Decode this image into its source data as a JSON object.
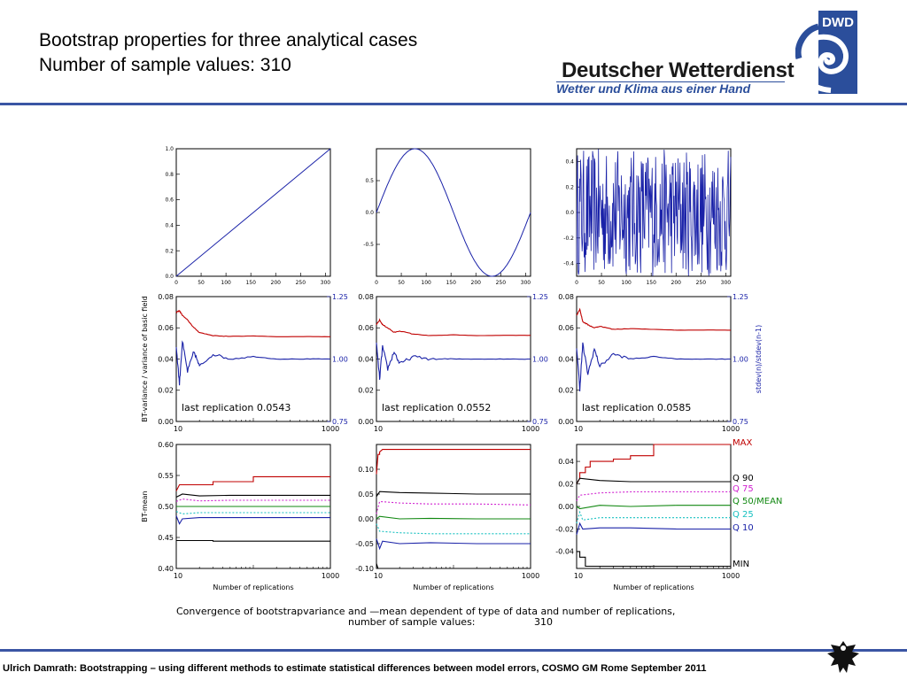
{
  "header": {
    "title_line1": "Bootstrap properties for three analytical cases",
    "title_line2": "Number of sample values: 310"
  },
  "logo": {
    "badge": "DWD",
    "name": "Deutscher Wetterdienst",
    "slogan": "Wetter und Klima aus einer Hand",
    "brand_color": "#2b4e9b"
  },
  "footer": {
    "text": "Ulrich Damrath: Bootstrapping – using different methods to estimate statistical differences between model errors, COSMO GM Rome September  2011"
  },
  "caption": {
    "line1": "Convergence of bootstrapvariance and —mean dependent of type of data and number of replications,",
    "line2": "number of sample values:",
    "value": "310"
  },
  "chart_data": [
    {
      "type": "line",
      "panel": "linear-data",
      "xlim": [
        0,
        310
      ],
      "ylim": [
        0,
        1
      ],
      "xticks": [
        "0",
        "50",
        "100",
        "150",
        "200",
        "250",
        "300"
      ],
      "yticks": [
        "0.0",
        "0.2",
        "0.4",
        "0.6",
        "0.8",
        "1.0"
      ],
      "series": [
        {
          "x": [
            0,
            310
          ],
          "y": [
            0,
            1
          ]
        }
      ]
    },
    {
      "type": "line",
      "panel": "sine-data",
      "xlim": [
        0,
        310
      ],
      "ylim": [
        -1,
        1
      ],
      "xticks": [
        "0",
        "50",
        "100",
        "150",
        "200",
        "250",
        "300"
      ],
      "yticks": [
        "-0.5",
        "0.0",
        "0.5"
      ],
      "series": [
        {
          "function": "sine",
          "x": [
            0,
            78,
            233,
            310
          ],
          "y": [
            0.0,
            1.0,
            -1.0,
            0.0
          ]
        }
      ]
    },
    {
      "type": "line",
      "panel": "random-data",
      "xlim": [
        0,
        310
      ],
      "ylim": [
        -0.5,
        0.5
      ],
      "xticks": [
        "0",
        "50",
        "100",
        "150",
        "200",
        "250",
        "300"
      ],
      "yticks": [
        "-0.4",
        "-0.2",
        "0.0",
        "0.2",
        "0.4"
      ],
      "series": [
        {
          "function": "uniform-random",
          "range": [
            -0.5,
            0.5
          ]
        }
      ]
    },
    {
      "type": "line",
      "panel": "variance-linear",
      "ylabel": "BT-variance / variance of basic field",
      "xscale": "log",
      "xlim": [
        10,
        1000
      ],
      "ylim": [
        0,
        0.08
      ],
      "y2lim": [
        0.75,
        1.25
      ],
      "xticks": [
        "10",
        "1000"
      ],
      "yticks": [
        "0.00",
        "0.02",
        "0.04",
        "0.06",
        "0.08"
      ],
      "y2ticks": [
        "0.75",
        "1.00",
        "1.25"
      ],
      "annotation": "last replication 0.0543",
      "series": [
        {
          "color": "#c00000",
          "x": [
            10,
            11,
            12,
            14,
            17,
            20,
            30,
            50,
            100,
            200,
            500,
            1000
          ],
          "y": [
            0.07,
            0.071,
            0.068,
            0.065,
            0.06,
            0.057,
            0.055,
            0.0545,
            0.0548,
            0.0543,
            0.0544,
            0.0543
          ]
        },
        {
          "color": "#1a22a8",
          "axis": "right",
          "x": [
            10,
            11,
            12,
            14,
            17,
            20,
            30,
            50,
            100,
            200,
            500,
            1000
          ],
          "y": [
            1.05,
            0.9,
            1.07,
            0.95,
            1.03,
            0.97,
            1.02,
            1.0,
            1.01,
            1.0,
            1.0,
            1.0
          ]
        }
      ]
    },
    {
      "type": "line",
      "panel": "variance-sine",
      "xscale": "log",
      "xlim": [
        10,
        1000
      ],
      "ylim": [
        0,
        0.08
      ],
      "y2lim": [
        0.75,
        1.25
      ],
      "xticks": [
        "10",
        "1000"
      ],
      "yticks": [
        "0.00",
        "0.02",
        "0.04",
        "0.06",
        "0.08"
      ],
      "y2ticks": [
        "0.75",
        "1.00",
        "1.25"
      ],
      "annotation": "last replication 0.0552",
      "series": [
        {
          "color": "#c00000",
          "x": [
            10,
            11,
            12,
            14,
            17,
            20,
            30,
            50,
            100,
            200,
            500,
            1000
          ],
          "y": [
            0.062,
            0.065,
            0.062,
            0.06,
            0.057,
            0.058,
            0.056,
            0.055,
            0.0555,
            0.055,
            0.0552,
            0.0552
          ]
        },
        {
          "color": "#1a22a8",
          "axis": "right",
          "x": [
            10,
            11,
            12,
            14,
            17,
            20,
            30,
            50,
            100,
            200,
            500,
            1000
          ],
          "y": [
            1.06,
            0.92,
            1.05,
            0.96,
            1.03,
            0.98,
            1.01,
            1.0,
            1.0,
            1.0,
            1.0,
            1.0
          ]
        }
      ]
    },
    {
      "type": "line",
      "panel": "variance-random",
      "y2label": "stdev(n)/stdev(n-1)",
      "xscale": "log",
      "xlim": [
        10,
        1000
      ],
      "ylim": [
        0,
        0.08
      ],
      "y2lim": [
        0.75,
        1.25
      ],
      "xticks": [
        "10",
        "1000"
      ],
      "yticks": [
        "0.00",
        "0.02",
        "0.04",
        "0.06",
        "0.08"
      ],
      "y2ticks": [
        "0.75",
        "1.00",
        "1.25"
      ],
      "annotation": "last replication 0.0585",
      "series": [
        {
          "color": "#c00000",
          "x": [
            10,
            11,
            12,
            14,
            17,
            20,
            30,
            50,
            100,
            200,
            500,
            1000
          ],
          "y": [
            0.068,
            0.072,
            0.064,
            0.062,
            0.06,
            0.061,
            0.059,
            0.0595,
            0.059,
            0.0585,
            0.0586,
            0.0585
          ]
        },
        {
          "color": "#1a22a8",
          "axis": "right",
          "x": [
            10,
            11,
            12,
            14,
            17,
            20,
            30,
            50,
            100,
            200,
            500,
            1000
          ],
          "y": [
            1.05,
            0.88,
            1.06,
            0.94,
            1.04,
            0.97,
            1.02,
            1.0,
            1.01,
            1.0,
            1.0,
            1.0
          ]
        }
      ]
    },
    {
      "type": "line",
      "panel": "mean-linear",
      "ylabel": "BT-mean",
      "xlabel": "Number of replications",
      "xscale": "log",
      "xlim": [
        10,
        1000
      ],
      "ylim": [
        0.4,
        0.6
      ],
      "xticks": [
        "10",
        "1000"
      ],
      "yticks": [
        "0.40",
        "0.45",
        "0.50",
        "0.55",
        "0.60"
      ],
      "series": [
        {
          "name": "MAX",
          "color": "#c00000",
          "style": "solid",
          "x": [
            10,
            11,
            30,
            30,
            100,
            100,
            1000
          ],
          "y": [
            0.525,
            0.535,
            0.535,
            0.54,
            0.54,
            0.548,
            0.548
          ]
        },
        {
          "name": "Q 90",
          "color": "#000000",
          "style": "solid",
          "x": [
            10,
            12,
            20,
            50,
            200,
            1000
          ],
          "y": [
            0.515,
            0.52,
            0.517,
            0.518,
            0.518,
            0.518
          ]
        },
        {
          "name": "Q 75",
          "color": "#d020d0",
          "style": "dotted",
          "x": [
            10,
            12,
            20,
            50,
            200,
            1000
          ],
          "y": [
            0.508,
            0.512,
            0.509,
            0.51,
            0.51,
            0.51
          ]
        },
        {
          "name": "Q 50/MEAN",
          "color": "#118811",
          "style": "solid",
          "x": [
            10,
            12,
            20,
            50,
            200,
            1000
          ],
          "y": [
            0.5,
            0.5,
            0.5,
            0.5,
            0.5,
            0.5
          ]
        },
        {
          "name": "Q 25",
          "color": "#16c0c0",
          "style": "dotted",
          "x": [
            10,
            12,
            20,
            50,
            200,
            1000
          ],
          "y": [
            0.492,
            0.488,
            0.49,
            0.49,
            0.49,
            0.49
          ]
        },
        {
          "name": "Q 10",
          "color": "#1a22a8",
          "style": "solid",
          "x": [
            10,
            11,
            12,
            20,
            50,
            200,
            1000
          ],
          "y": [
            0.485,
            0.472,
            0.48,
            0.482,
            0.482,
            0.482,
            0.482
          ]
        },
        {
          "name": "MIN",
          "color": "#000000",
          "style": "solid",
          "x": [
            10,
            30,
            30,
            1000
          ],
          "y": [
            0.445,
            0.445,
            0.444,
            0.444
          ]
        }
      ]
    },
    {
      "type": "line",
      "panel": "mean-sine",
      "xlabel": "Number of replications",
      "xscale": "log",
      "xlim": [
        10,
        1000
      ],
      "ylim": [
        -0.1,
        0.15
      ],
      "xticks": [
        "10",
        "1000"
      ],
      "yticks": [
        "-0.10",
        "-0.05",
        "0.00",
        "0.05",
        "0.10"
      ],
      "series": [
        {
          "name": "MAX",
          "color": "#c00000",
          "style": "solid",
          "x": [
            10,
            10.5,
            11,
            11,
            12,
            1000
          ],
          "y": [
            0.09,
            0.13,
            0.13,
            0.135,
            0.14,
            0.14
          ]
        },
        {
          "name": "Q 90",
          "color": "#000000",
          "style": "solid",
          "x": [
            10,
            11,
            20,
            50,
            200,
            1000
          ],
          "y": [
            0.045,
            0.055,
            0.053,
            0.052,
            0.05,
            0.05
          ]
        },
        {
          "name": "Q 75",
          "color": "#d020d0",
          "style": "dotted",
          "x": [
            10,
            11,
            20,
            50,
            200,
            1000
          ],
          "y": [
            0.01,
            0.035,
            0.032,
            0.03,
            0.03,
            0.028
          ]
        },
        {
          "name": "Q 50/MEAN",
          "color": "#118811",
          "style": "solid",
          "x": [
            10,
            11,
            20,
            50,
            200,
            1000
          ],
          "y": [
            0.0,
            0.005,
            0.0,
            0.001,
            0.0,
            0.0
          ]
        },
        {
          "name": "Q 25",
          "color": "#16c0c0",
          "style": "dotted",
          "x": [
            10,
            11,
            20,
            50,
            200,
            1000
          ],
          "y": [
            -0.01,
            -0.025,
            -0.028,
            -0.03,
            -0.03,
            -0.03
          ]
        },
        {
          "name": "Q 10",
          "color": "#1a22a8",
          "style": "solid",
          "x": [
            10,
            11,
            12,
            20,
            50,
            200,
            1000
          ],
          "y": [
            -0.04,
            -0.06,
            -0.045,
            -0.05,
            -0.048,
            -0.05,
            -0.05
          ]
        },
        {
          "name": "MIN",
          "color": "#000000",
          "style": "solid",
          "x": [
            10,
            10.5,
            11,
            11,
            1000
          ],
          "y": [
            -0.09,
            -0.1,
            -0.1,
            -0.1,
            -0.1
          ]
        }
      ]
    },
    {
      "type": "line",
      "panel": "mean-random",
      "xlabel": "Number of replications",
      "xscale": "log",
      "xlim": [
        10,
        1000
      ],
      "ylim": [
        -0.055,
        0.055
      ],
      "xticks": [
        "10",
        "1000"
      ],
      "yticks": [
        "-0.04",
        "-0.02",
        "0.00",
        "0.02",
        "0.04"
      ],
      "legend": [
        "MAX",
        "Q 90",
        "Q 75",
        "Q 50/MEAN",
        "Q 25",
        "Q 10",
        "MIN"
      ],
      "legend_placement": "right",
      "series": [
        {
          "name": "MAX",
          "color": "#c00000",
          "style": "solid",
          "x": [
            10,
            11,
            11,
            13,
            13,
            15,
            15,
            30,
            30,
            50,
            50,
            100,
            100,
            1000
          ],
          "y": [
            0.02,
            0.025,
            0.03,
            0.03,
            0.035,
            0.035,
            0.04,
            0.04,
            0.042,
            0.042,
            0.045,
            0.045,
            0.055,
            0.055
          ]
        },
        {
          "name": "Q 90",
          "color": "#000000",
          "style": "solid",
          "x": [
            10,
            11,
            20,
            50,
            200,
            1000
          ],
          "y": [
            0.02,
            0.025,
            0.023,
            0.022,
            0.022,
            0.022
          ]
        },
        {
          "name": "Q 75",
          "color": "#d020d0",
          "style": "dotted",
          "x": [
            10,
            11,
            20,
            50,
            200,
            1000
          ],
          "y": [
            0.005,
            0.01,
            0.012,
            0.013,
            0.013,
            0.013
          ]
        },
        {
          "name": "Q 50/MEAN",
          "color": "#118811",
          "style": "solid",
          "x": [
            10,
            11,
            20,
            50,
            200,
            1000
          ],
          "y": [
            0.0,
            -0.002,
            0.001,
            0.0,
            0.001,
            0.001
          ]
        },
        {
          "name": "Q 25",
          "color": "#16c0c0",
          "style": "dotted",
          "x": [
            10,
            11,
            12,
            20,
            50,
            200,
            1000
          ],
          "y": [
            -0.015,
            -0.005,
            -0.012,
            -0.01,
            -0.01,
            -0.01,
            -0.01
          ]
        },
        {
          "name": "Q 10",
          "color": "#1a22a8",
          "style": "solid",
          "x": [
            10,
            11,
            12,
            20,
            50,
            200,
            1000
          ],
          "y": [
            -0.025,
            -0.015,
            -0.02,
            -0.019,
            -0.019,
            -0.02,
            -0.02
          ]
        },
        {
          "name": "MIN",
          "color": "#000000",
          "style": "solid",
          "x": [
            10,
            11,
            11,
            13,
            13,
            1000
          ],
          "y": [
            -0.04,
            -0.04,
            -0.045,
            -0.045,
            -0.053,
            -0.053
          ]
        }
      ]
    }
  ]
}
